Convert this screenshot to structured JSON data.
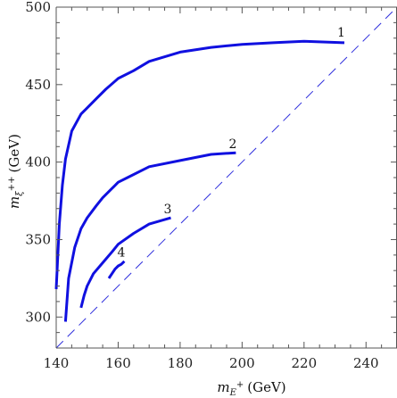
{
  "chart_data": {
    "type": "line",
    "xlabel": {
      "symbol": "m",
      "sub": "E",
      "sup": "+",
      "unit": "(GeV)"
    },
    "ylabel": {
      "symbol": "m",
      "sub": "ξ",
      "sup": "++",
      "unit": "(GeV)"
    },
    "xlim": [
      140,
      250
    ],
    "ylim": [
      280,
      500
    ],
    "xticks": [
      140,
      160,
      180,
      200,
      220,
      240
    ],
    "yticks": [
      300,
      350,
      400,
      450,
      500
    ],
    "grid": false,
    "colors": {
      "series": "#1010e0",
      "diagonal": "#3030dd",
      "axis": "#555555"
    },
    "series": [
      {
        "label": "1",
        "label_at": [
          232,
          481
        ],
        "x": [
          140,
          141,
          142,
          143,
          145,
          148,
          150,
          153,
          156,
          160,
          165,
          170,
          180,
          190,
          200,
          210,
          220,
          233
        ],
        "y": [
          318,
          360,
          385,
          402,
          420,
          431,
          435,
          441,
          447,
          454,
          459,
          465,
          471,
          474,
          476,
          477,
          478,
          477
        ]
      },
      {
        "label": "2",
        "label_at": [
          197,
          409
        ],
        "x": [
          143,
          144,
          146,
          148,
          150,
          153,
          155,
          158,
          160,
          163,
          170,
          180,
          190,
          198
        ],
        "y": [
          297,
          325,
          345,
          357,
          364,
          372,
          377,
          383,
          387,
          390,
          397,
          401,
          405,
          406
        ]
      },
      {
        "label": "3",
        "label_at": [
          176,
          367
        ],
        "x": [
          148,
          149,
          150,
          152,
          155,
          158,
          160,
          165,
          170,
          177
        ],
        "y": [
          306,
          314,
          320,
          328,
          335,
          342,
          347,
          354,
          360,
          364
        ]
      },
      {
        "label": "4",
        "label_at": [
          161,
          339
        ],
        "x": [
          157,
          158,
          159,
          160,
          161,
          162
        ],
        "y": [
          325,
          328,
          331,
          333,
          334,
          336
        ]
      }
    ],
    "reference_line": {
      "style": "dashed",
      "x": [
        140,
        250
      ],
      "y": [
        280,
        500
      ]
    }
  }
}
